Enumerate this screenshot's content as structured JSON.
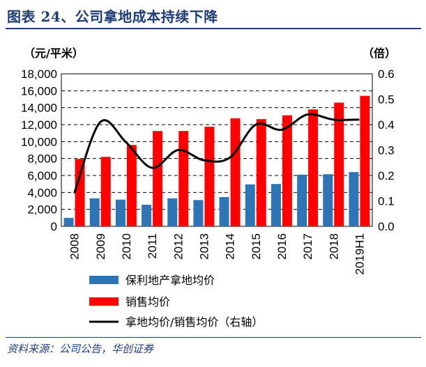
{
  "header": {
    "title": "图表 24、公司拿地成本持续下降"
  },
  "footer": {
    "source": "资料来源：公司公告，华创证券"
  },
  "chart_data": {
    "type": "bar",
    "categories": [
      "2008",
      "2009",
      "2010",
      "2011",
      "2012",
      "2013",
      "2014",
      "2015",
      "2016",
      "2017",
      "2018",
      "2019H1"
    ],
    "left_unit": "（元/平米）",
    "right_unit": "（倍）",
    "left_ylim": [
      0,
      18000
    ],
    "left_ticks": [
      "0",
      "2,000",
      "4,000",
      "6,000",
      "8,000",
      "10,000",
      "12,000",
      "14,000",
      "16,000",
      "18,000"
    ],
    "right_ylim": [
      0,
      0.6
    ],
    "right_ticks": [
      "0.0",
      "0.1",
      "0.2",
      "0.3",
      "0.4",
      "0.5",
      "0.6"
    ],
    "grid": "horizontal dashed",
    "legend_position": "bottom",
    "series": [
      {
        "name": "保利地产拿地均价",
        "type": "bar",
        "axis": "left",
        "color": "#2e75b6",
        "values": [
          1000,
          3300,
          3150,
          2550,
          3300,
          3100,
          3450,
          4950,
          5000,
          6100,
          6150,
          6400
        ]
      },
      {
        "name": "销售均价",
        "type": "bar",
        "axis": "left",
        "color": "#ff0000",
        "values": [
          7950,
          8200,
          9600,
          11250,
          11250,
          11750,
          12750,
          12650,
          13100,
          13800,
          14600,
          15400
        ]
      },
      {
        "name": "拿地均价/销售均价（右轴）",
        "type": "line",
        "axis": "right",
        "color": "#000000",
        "values": [
          0.13,
          0.41,
          0.33,
          0.23,
          0.3,
          0.26,
          0.27,
          0.4,
          0.38,
          0.44,
          0.42,
          0.42
        ]
      }
    ]
  }
}
